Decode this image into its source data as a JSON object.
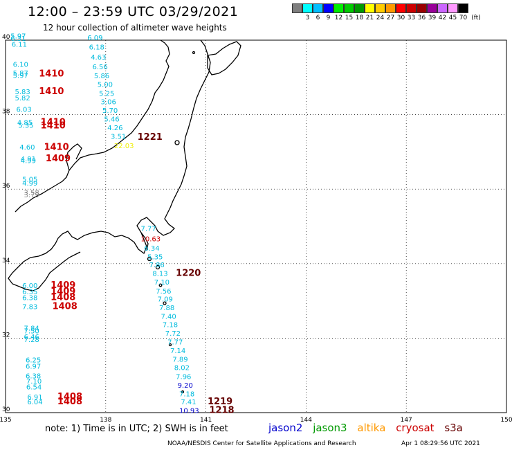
{
  "header": {
    "title": "12:00 – 23:59 UTC 03/29/2021",
    "subtitle": "12 hour collection of altimeter wave heights"
  },
  "legend": {
    "colors": [
      "#7f7f7f",
      "#00ffff",
      "#00bfff",
      "#0000ff",
      "#00ee00",
      "#00cc00",
      "#009900",
      "#ffff00",
      "#ffcc00",
      "#ff9900",
      "#ff0000",
      "#cc0000",
      "#990000",
      "#990099",
      "#cc66ff",
      "#ff99ff",
      "#000000"
    ],
    "labels": [
      "",
      "3",
      "6",
      "9",
      "12",
      "15",
      "18",
      "21",
      "24",
      "27",
      "30",
      "33",
      "36",
      "39",
      "42",
      "45",
      "70",
      "(ft)"
    ]
  },
  "axes": {
    "x_ticks": [
      "135",
      "138",
      "141",
      "144",
      "147",
      "150"
    ],
    "y_ticks": [
      "40",
      "38",
      "36",
      "34",
      "32",
      "30"
    ]
  },
  "colors": {
    "jason2": "#0000cc",
    "jason3": "#009900",
    "altika": "#ff9900",
    "cryosat": "#cc0000",
    "s3a": "#660000",
    "cyan": "#00bbdd",
    "yellow": "#eeee00",
    "gray": "#888888"
  },
  "observations": [
    {
      "t": "5.97",
      "c": "cyan",
      "lon": 135.15,
      "lat": 40.05
    },
    {
      "t": "6.31",
      "c": "cyan",
      "lon": 135.15,
      "lat": 39.98
    },
    {
      "t": "6.11",
      "c": "cyan",
      "lon": 135.18,
      "lat": 39.82
    },
    {
      "t": "6.10",
      "c": "cyan",
      "lon": 135.22,
      "lat": 39.28
    },
    {
      "t": "5.87",
      "c": "cyan",
      "lon": 135.22,
      "lat": 39.05
    },
    {
      "t": "5.97",
      "c": "cyan",
      "lon": 135.22,
      "lat": 38.99
    },
    {
      "t": "1410",
      "c": "cryosat",
      "lon": 136.0,
      "lat": 39.02
    },
    {
      "t": "5.83",
      "c": "cyan",
      "lon": 135.28,
      "lat": 38.55
    },
    {
      "t": "1410",
      "c": "cryosat",
      "lon": 136.0,
      "lat": 38.55
    },
    {
      "t": "5.82",
      "c": "cyan",
      "lon": 135.28,
      "lat": 38.38
    },
    {
      "t": "6.03",
      "c": "cyan",
      "lon": 135.32,
      "lat": 38.08
    },
    {
      "t": "4.85",
      "c": "cyan",
      "lon": 135.35,
      "lat": 37.72
    },
    {
      "t": "1410",
      "c": "cryosat",
      "lon": 136.05,
      "lat": 37.72
    },
    {
      "t": "5.35",
      "c": "cyan",
      "lon": 135.38,
      "lat": 37.65
    },
    {
      "t": "1410",
      "c": "cryosat",
      "lon": 136.05,
      "lat": 37.63
    },
    {
      "t": "4.60",
      "c": "cyan",
      "lon": 135.42,
      "lat": 37.06
    },
    {
      "t": "1410",
      "c": "cryosat",
      "lon": 136.15,
      "lat": 37.05
    },
    {
      "t": "4.91",
      "c": "cyan",
      "lon": 135.45,
      "lat": 36.75
    },
    {
      "t": "4.99",
      "c": "cyan",
      "lon": 135.45,
      "lat": 36.7
    },
    {
      "t": "1409",
      "c": "cryosat",
      "lon": 136.2,
      "lat": 36.75
    },
    {
      "t": "5.05",
      "c": "cyan",
      "lon": 135.5,
      "lat": 36.2
    },
    {
      "t": "4.99",
      "c": "cyan",
      "lon": 135.5,
      "lat": 36.1
    },
    {
      "t": "3.58",
      "c": "gray",
      "lon": 135.55,
      "lat": 35.85
    },
    {
      "t": "3.79",
      "c": "gray",
      "lon": 135.55,
      "lat": 35.78
    },
    {
      "t": "6.09",
      "c": "cyan",
      "lon": 137.45,
      "lat": 40.0
    },
    {
      "t": "6.18",
      "c": "cyan",
      "lon": 137.5,
      "lat": 39.75
    },
    {
      "t": "4.63",
      "c": "cyan",
      "lon": 137.55,
      "lat": 39.48
    },
    {
      "t": "6.56",
      "c": "cyan",
      "lon": 137.6,
      "lat": 39.22
    },
    {
      "t": "5.86",
      "c": "cyan",
      "lon": 137.65,
      "lat": 38.98
    },
    {
      "t": "5.00",
      "c": "cyan",
      "lon": 137.75,
      "lat": 38.75
    },
    {
      "t": "5.25",
      "c": "cyan",
      "lon": 137.8,
      "lat": 38.5
    },
    {
      "t": "3.06",
      "c": "cyan",
      "lon": 137.85,
      "lat": 38.28
    },
    {
      "t": "5.70",
      "c": "cyan",
      "lon": 137.9,
      "lat": 38.05
    },
    {
      "t": "5.46",
      "c": "cyan",
      "lon": 137.95,
      "lat": 37.82
    },
    {
      "t": "4.26",
      "c": "cyan",
      "lon": 138.05,
      "lat": 37.58
    },
    {
      "t": "3.51",
      "c": "cyan",
      "lon": 138.15,
      "lat": 37.35
    },
    {
      "t": "1221",
      "c": "s3a",
      "lon": 138.95,
      "lat": 37.32
    },
    {
      "t": "22.03",
      "c": "yellow",
      "lon": 138.25,
      "lat": 37.1
    },
    {
      "t": "7.77",
      "c": "cyan",
      "lon": 139.05,
      "lat": 34.88
    },
    {
      "t": "10.63",
      "c": "cryosat",
      "lon": 139.05,
      "lat": 34.6
    },
    {
      "t": "6.34",
      "c": "cyan",
      "lon": 139.15,
      "lat": 34.35
    },
    {
      "t": "5.35",
      "c": "cyan",
      "lon": 139.25,
      "lat": 34.12
    },
    {
      "t": "7.86",
      "c": "cyan",
      "lon": 139.3,
      "lat": 33.9
    },
    {
      "t": "8.13",
      "c": "cyan",
      "lon": 139.4,
      "lat": 33.67
    },
    {
      "t": "1220",
      "c": "s3a",
      "lon": 140.1,
      "lat": 33.67
    },
    {
      "t": "7.10",
      "c": "cyan",
      "lon": 139.45,
      "lat": 33.44
    },
    {
      "t": "7.56",
      "c": "cyan",
      "lon": 139.5,
      "lat": 33.2
    },
    {
      "t": "7.09",
      "c": "cyan",
      "lon": 139.55,
      "lat": 32.98
    },
    {
      "t": "7.88",
      "c": "cyan",
      "lon": 139.6,
      "lat": 32.75
    },
    {
      "t": "7.40",
      "c": "cyan",
      "lon": 139.65,
      "lat": 32.52
    },
    {
      "t": "7.18",
      "c": "cyan",
      "lon": 139.7,
      "lat": 32.3
    },
    {
      "t": "7.72",
      "c": "cyan",
      "lon": 139.78,
      "lat": 32.06
    },
    {
      "t": "7.77",
      "c": "cyan",
      "lon": 139.85,
      "lat": 31.83
    },
    {
      "t": "7.14",
      "c": "cyan",
      "lon": 139.93,
      "lat": 31.6
    },
    {
      "t": "7.89",
      "c": "cyan",
      "lon": 140.0,
      "lat": 31.37
    },
    {
      "t": "8.02",
      "c": "cyan",
      "lon": 140.05,
      "lat": 31.14
    },
    {
      "t": "7.96",
      "c": "cyan",
      "lon": 140.1,
      "lat": 30.9
    },
    {
      "t": "9.20",
      "c": "jason2",
      "lon": 140.15,
      "lat": 30.67
    },
    {
      "t": "7.18",
      "c": "cyan",
      "lon": 140.2,
      "lat": 30.44
    },
    {
      "t": "7.41",
      "c": "cyan",
      "lon": 140.25,
      "lat": 30.22
    },
    {
      "t": "1219",
      "c": "s3a",
      "lon": 141.05,
      "lat": 30.22
    },
    {
      "t": "10.93",
      "c": "jason2",
      "lon": 140.2,
      "lat": 29.99
    },
    {
      "t": "1218",
      "c": "s3a",
      "lon": 141.1,
      "lat": 29.99
    },
    {
      "t": "6.00",
      "c": "cyan",
      "lon": 135.5,
      "lat": 33.35
    },
    {
      "t": "1409",
      "c": "cryosat",
      "lon": 136.35,
      "lat": 33.35
    },
    {
      "t": "6.35",
      "c": "cyan",
      "lon": 135.5,
      "lat": 33.18
    },
    {
      "t": "1409",
      "c": "cryosat",
      "lon": 136.35,
      "lat": 33.18
    },
    {
      "t": "6.38",
      "c": "cyan",
      "lon": 135.5,
      "lat": 33.02
    },
    {
      "t": "1408",
      "c": "cryosat",
      "lon": 136.35,
      "lat": 33.02
    },
    {
      "t": "7.83",
      "c": "cyan",
      "lon": 135.5,
      "lat": 32.78
    },
    {
      "t": "1408",
      "c": "cryosat",
      "lon": 136.4,
      "lat": 32.78
    },
    {
      "t": "7.84",
      "c": "cyan",
      "lon": 135.55,
      "lat": 32.2
    },
    {
      "t": "7.50",
      "c": "cyan",
      "lon": 135.55,
      "lat": 32.13
    },
    {
      "t": "6.46",
      "c": "cyan",
      "lon": 135.55,
      "lat": 31.97
    },
    {
      "t": "7.28",
      "c": "cyan",
      "lon": 135.55,
      "lat": 31.9
    },
    {
      "t": "6.25",
      "c": "cyan",
      "lon": 135.6,
      "lat": 31.35
    },
    {
      "t": "6.97",
      "c": "cyan",
      "lon": 135.6,
      "lat": 31.18
    },
    {
      "t": "6.38",
      "c": "cyan",
      "lon": 135.6,
      "lat": 30.92
    },
    {
      "t": "7.10",
      "c": "cyan",
      "lon": 135.62,
      "lat": 30.78
    },
    {
      "t": "6.54",
      "c": "cyan",
      "lon": 135.62,
      "lat": 30.62
    },
    {
      "t": "6.91",
      "c": "cyan",
      "lon": 135.65,
      "lat": 30.35
    },
    {
      "t": "1408",
      "c": "cryosat",
      "lon": 136.55,
      "lat": 30.35
    },
    {
      "t": "6.04",
      "c": "cyan",
      "lon": 135.65,
      "lat": 30.22
    },
    {
      "t": "1408",
      "c": "cryosat",
      "lon": 136.55,
      "lat": 30.22
    }
  ],
  "footer": {
    "note": "note:  1) Time is in UTC;  2) SWH is in feet",
    "sat_jason2": "jason2",
    "sat_jason3": "jason3",
    "sat_altika": "altika",
    "sat_cryosat": "cryosat",
    "sat_s3a": "s3a",
    "credit": "NOAA/NESDIS Center for Satellite Applications and Research",
    "timestamp": "Apr  1 08:29:56 UTC 2021"
  }
}
